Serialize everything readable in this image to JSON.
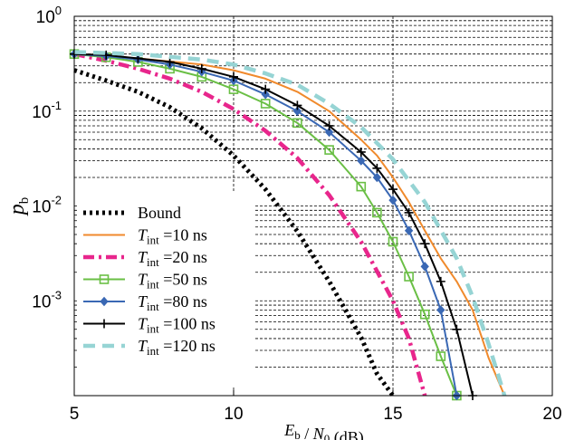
{
  "chart_data": {
    "type": "line",
    "xlabel": "E_b / N_0 (dB)",
    "ylabel": "p_b",
    "xlim": [
      5,
      20
    ],
    "ylim": [
      0.0001,
      1
    ],
    "yscale": "log",
    "grid": "dashed minor on y, major on x",
    "x_ticks": [
      "5",
      "10",
      "15",
      "20"
    ],
    "y_ticks": [
      {
        "base": "10",
        "exp": "0",
        "value": 1
      },
      {
        "base": "10",
        "exp": "-1",
        "value": 0.1
      },
      {
        "base": "10",
        "exp": "-2",
        "value": 0.01
      },
      {
        "base": "10",
        "exp": "-3",
        "value": 0.001
      }
    ],
    "legend_position": "lower-left",
    "series": [
      {
        "name": "Bound",
        "legend": {
          "main": "Bound"
        },
        "color": "#000000",
        "style": "dotted",
        "x": [
          5,
          6,
          7,
          8,
          9,
          10,
          11,
          12,
          13,
          14,
          14.5,
          15
        ],
        "y": [
          0.27,
          0.21,
          0.16,
          0.11,
          0.066,
          0.034,
          0.015,
          0.0054,
          0.0016,
          0.00041,
          0.00017,
          0.0001
        ]
      },
      {
        "name": "T_int =10 ns",
        "legend": {
          "main": "T",
          "sub": "int",
          "rest": " =10 ns"
        },
        "color": "#f08a2c",
        "style": "solid",
        "x": [
          5,
          7,
          9,
          10,
          11,
          12,
          13,
          14,
          14.5,
          15,
          15.5,
          16,
          16.5,
          17,
          17.5,
          18,
          18.5
        ],
        "y": [
          0.4,
          0.36,
          0.31,
          0.27,
          0.22,
          0.16,
          0.1,
          0.05,
          0.034,
          0.02,
          0.011,
          0.0055,
          0.0028,
          0.0016,
          0.0008,
          0.00025,
          0.0001
        ]
      },
      {
        "name": "T_int =20 ns",
        "legend": {
          "main": "T",
          "sub": "int",
          "rest": " =20 ns"
        },
        "color": "#e8268c",
        "style": "dashdot",
        "x": [
          5,
          6,
          7,
          8,
          9,
          10,
          11,
          12,
          13,
          14,
          15,
          15.5,
          16
        ],
        "y": [
          0.4,
          0.34,
          0.28,
          0.22,
          0.16,
          0.105,
          0.062,
          0.032,
          0.013,
          0.0042,
          0.001,
          0.0004,
          0.0001
        ]
      },
      {
        "name": "T_int =50 ns",
        "legend": {
          "main": "T",
          "sub": "int",
          "rest": " =50 ns"
        },
        "color": "#6abf45",
        "style": "solid",
        "marker": "square",
        "x": [
          5,
          6,
          7,
          8,
          9,
          10,
          11,
          12,
          13,
          14,
          14.5,
          15,
          15.5,
          16,
          16.5,
          17
        ],
        "y": [
          0.4,
          0.37,
          0.33,
          0.28,
          0.23,
          0.17,
          0.12,
          0.075,
          0.039,
          0.016,
          0.0085,
          0.0042,
          0.0018,
          0.00072,
          0.00026,
          0.0001
        ]
      },
      {
        "name": "T_int =80 ns",
        "legend": {
          "main": "T",
          "sub": "int",
          "rest": " =80 ns"
        },
        "color": "#3a68b4",
        "style": "solid",
        "marker": "diamond",
        "x": [
          5,
          6,
          7,
          8,
          9,
          10,
          11,
          12,
          13,
          14,
          14.5,
          15,
          15.5,
          16,
          16.5,
          17
        ],
        "y": [
          0.4,
          0.38,
          0.35,
          0.31,
          0.26,
          0.21,
          0.15,
          0.1,
          0.06,
          0.03,
          0.02,
          0.0115,
          0.0055,
          0.0023,
          0.0008,
          0.0001
        ]
      },
      {
        "name": "T_int =100 ns",
        "legend": {
          "main": "T",
          "sub": "int",
          "rest": " =100 ns"
        },
        "color": "#000000",
        "style": "solid",
        "marker": "plus",
        "x": [
          5,
          6,
          7,
          8,
          9,
          10,
          11,
          12,
          13,
          14,
          14.5,
          15,
          15.5,
          16,
          16.5,
          17,
          17.5
        ],
        "y": [
          0.4,
          0.39,
          0.36,
          0.33,
          0.28,
          0.23,
          0.17,
          0.115,
          0.07,
          0.037,
          0.025,
          0.015,
          0.0085,
          0.004,
          0.0016,
          0.0005,
          0.0001
        ]
      },
      {
        "name": "T_int =120 ns",
        "legend": {
          "main": "T",
          "sub": "int",
          "rest": " =120 ns"
        },
        "color": "#96d4d4",
        "style": "dashed",
        "x": [
          5,
          7,
          9,
          10,
          11,
          12,
          13,
          14,
          15,
          16,
          17,
          17.5,
          18,
          18.5
        ],
        "y": [
          0.42,
          0.4,
          0.35,
          0.31,
          0.25,
          0.19,
          0.12,
          0.068,
          0.031,
          0.011,
          0.0028,
          0.0011,
          0.00035,
          0.0001
        ]
      }
    ]
  }
}
